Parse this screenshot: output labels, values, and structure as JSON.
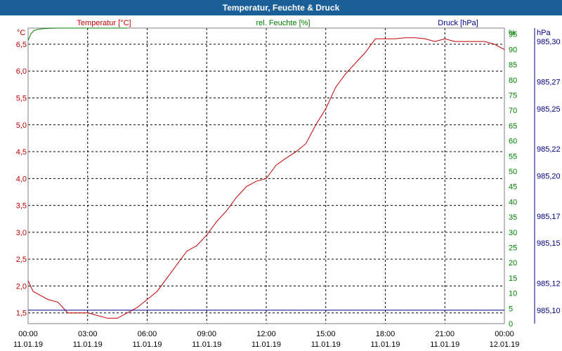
{
  "window": {
    "title": "Temperatur, Feuchte & Druck"
  },
  "chart_data": {
    "type": "line",
    "title": "Temperatur, Feuchte & Druck",
    "grid": true,
    "legend": [
      "Temperatur [°C]",
      "rel. Feuchte [%]",
      "Druck [hPa]"
    ],
    "colors": {
      "temperature": "#c00000",
      "humidity": "#008000",
      "pressure": "#000080"
    },
    "x_axis": {
      "ticks": [
        {
          "time": "00:00",
          "date": "11.01.19"
        },
        {
          "time": "03:00",
          "date": "11.01.19"
        },
        {
          "time": "06:00",
          "date": "11.01.19"
        },
        {
          "time": "09:00",
          "date": "11.01.19"
        },
        {
          "time": "12:00",
          "date": "11.01.19"
        },
        {
          "time": "15:00",
          "date": "11.01.19"
        },
        {
          "time": "18:00",
          "date": "11.01.19"
        },
        {
          "time": "21:00",
          "date": "11.01.19"
        },
        {
          "time": "00:00",
          "date": "12.01.19"
        }
      ]
    },
    "y_axes": {
      "temperature": {
        "unit": "°C",
        "min": 1.3,
        "max": 6.8,
        "ticks": [
          "1,5",
          "2,0",
          "2,5",
          "3,0",
          "3,5",
          "4,0",
          "4,5",
          "5,0",
          "5,5",
          "6,0",
          "6,5"
        ]
      },
      "humidity": {
        "unit": "%",
        "min": 0,
        "max": 97,
        "ticks": [
          "0",
          "5",
          "10",
          "15",
          "20",
          "25",
          "30",
          "35",
          "40",
          "45",
          "50",
          "55",
          "60",
          "65",
          "70",
          "75",
          "80",
          "85",
          "90",
          "95"
        ]
      },
      "pressure": {
        "unit": "hPa",
        "min": 985.09,
        "max": 985.31,
        "ticks": [
          "985,10",
          "985,12",
          "985,15",
          "985,17",
          "985,20",
          "985,22",
          "985,25",
          "985,27",
          "985,30"
        ]
      }
    },
    "series": [
      {
        "name": "Temperatur [°C]",
        "x_hours": [
          0,
          0.25,
          0.5,
          1,
          1.5,
          2,
          2.5,
          3,
          3.5,
          4,
          4.5,
          5,
          5.5,
          6,
          6.5,
          7,
          7.5,
          8,
          8.5,
          9,
          9.5,
          10,
          10.5,
          11,
          11.5,
          12,
          12.5,
          13,
          13.5,
          14,
          14.5,
          15,
          15.5,
          16,
          16.5,
          17,
          17.5,
          18,
          18.5,
          19,
          19.5,
          20,
          20.5,
          21,
          21.5,
          22,
          22.5,
          23,
          23.5,
          24
        ],
        "values": [
          2.1,
          1.9,
          1.85,
          1.75,
          1.7,
          1.5,
          1.5,
          1.5,
          1.45,
          1.4,
          1.4,
          1.5,
          1.6,
          1.75,
          1.9,
          2.15,
          2.4,
          2.65,
          2.75,
          2.95,
          3.2,
          3.4,
          3.65,
          3.85,
          3.95,
          4.0,
          4.25,
          4.38,
          4.5,
          4.65,
          5.0,
          5.3,
          5.7,
          5.95,
          6.15,
          6.35,
          6.6,
          6.6,
          6.6,
          6.62,
          6.62,
          6.6,
          6.55,
          6.6,
          6.55,
          6.55,
          6.55,
          6.55,
          6.5,
          6.4
        ]
      },
      {
        "name": "rel. Feuchte [%]",
        "x_hours": [
          0,
          0.15,
          0.3,
          0.5,
          0.75,
          1,
          1.5,
          2,
          2.5,
          3,
          3.5,
          4,
          4.5,
          5
        ],
        "values": [
          93,
          95.2,
          96.2,
          96.6,
          96.8,
          96.9,
          97,
          97,
          97,
          97,
          97,
          97,
          97,
          97
        ]
      },
      {
        "name": "Druck [hPa]",
        "x_hours": [
          0,
          3,
          6,
          9,
          12,
          15,
          18,
          21,
          24
        ],
        "values": [
          985.1,
          985.1,
          985.1,
          985.1,
          985.1,
          985.1,
          985.1,
          985.1,
          985.1
        ]
      }
    ]
  }
}
